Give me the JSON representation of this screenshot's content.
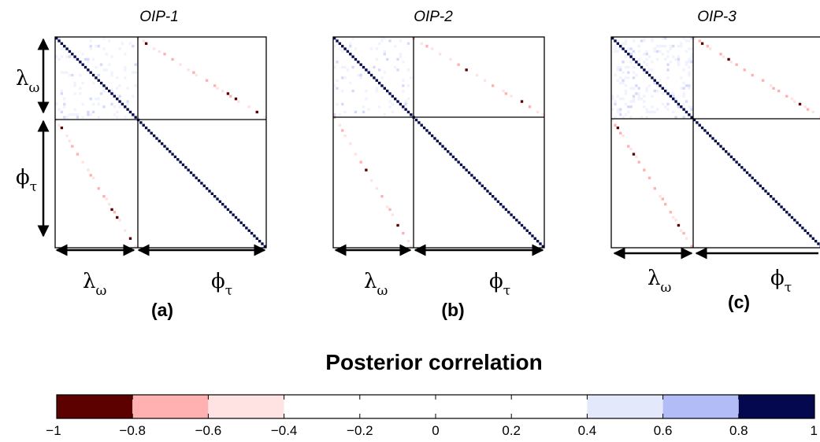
{
  "chart_data": {
    "type": "heatmap",
    "panels": [
      {
        "title": "OIP-1",
        "label": "(a)",
        "axis_block_1": "λ",
        "axis_block_1_sub": "ω",
        "axis_block_2": "ϕ",
        "axis_block_2_sub": "τ"
      },
      {
        "title": "OIP-2",
        "label": "(b)",
        "axis_block_1": "λ",
        "axis_block_1_sub": "ω",
        "axis_block_2": "ϕ",
        "axis_block_2_sub": "τ"
      },
      {
        "title": "OIP-3",
        "label": "(c)",
        "axis_block_1": "λ",
        "axis_block_1_sub": "ω",
        "axis_block_2": "ϕ",
        "axis_block_2_sub": "τ"
      }
    ],
    "colorbar": {
      "title": "Posterior correlation",
      "range": [
        -1,
        1
      ],
      "ticks": [
        "−1",
        "−0.8",
        "−0.6",
        "−0.4",
        "−0.2",
        "0",
        "0.2",
        "0.4",
        "0.6",
        "0.8",
        "1"
      ],
      "bins": [
        {
          "from": -1.0,
          "to": -0.8,
          "color": "#5c0000"
        },
        {
          "from": -0.8,
          "to": -0.6,
          "color": "#ffb0b0"
        },
        {
          "from": -0.6,
          "to": -0.4,
          "color": "#ffe2e2"
        },
        {
          "from": -0.4,
          "to": 0.4,
          "color": "#ffffff"
        },
        {
          "from": 0.4,
          "to": 0.6,
          "color": "#e4e8fb"
        },
        {
          "from": 0.6,
          "to": 0.8,
          "color": "#b2bcf6"
        },
        {
          "from": 0.8,
          "to": 1.0,
          "color": "#04084e"
        }
      ]
    }
  }
}
